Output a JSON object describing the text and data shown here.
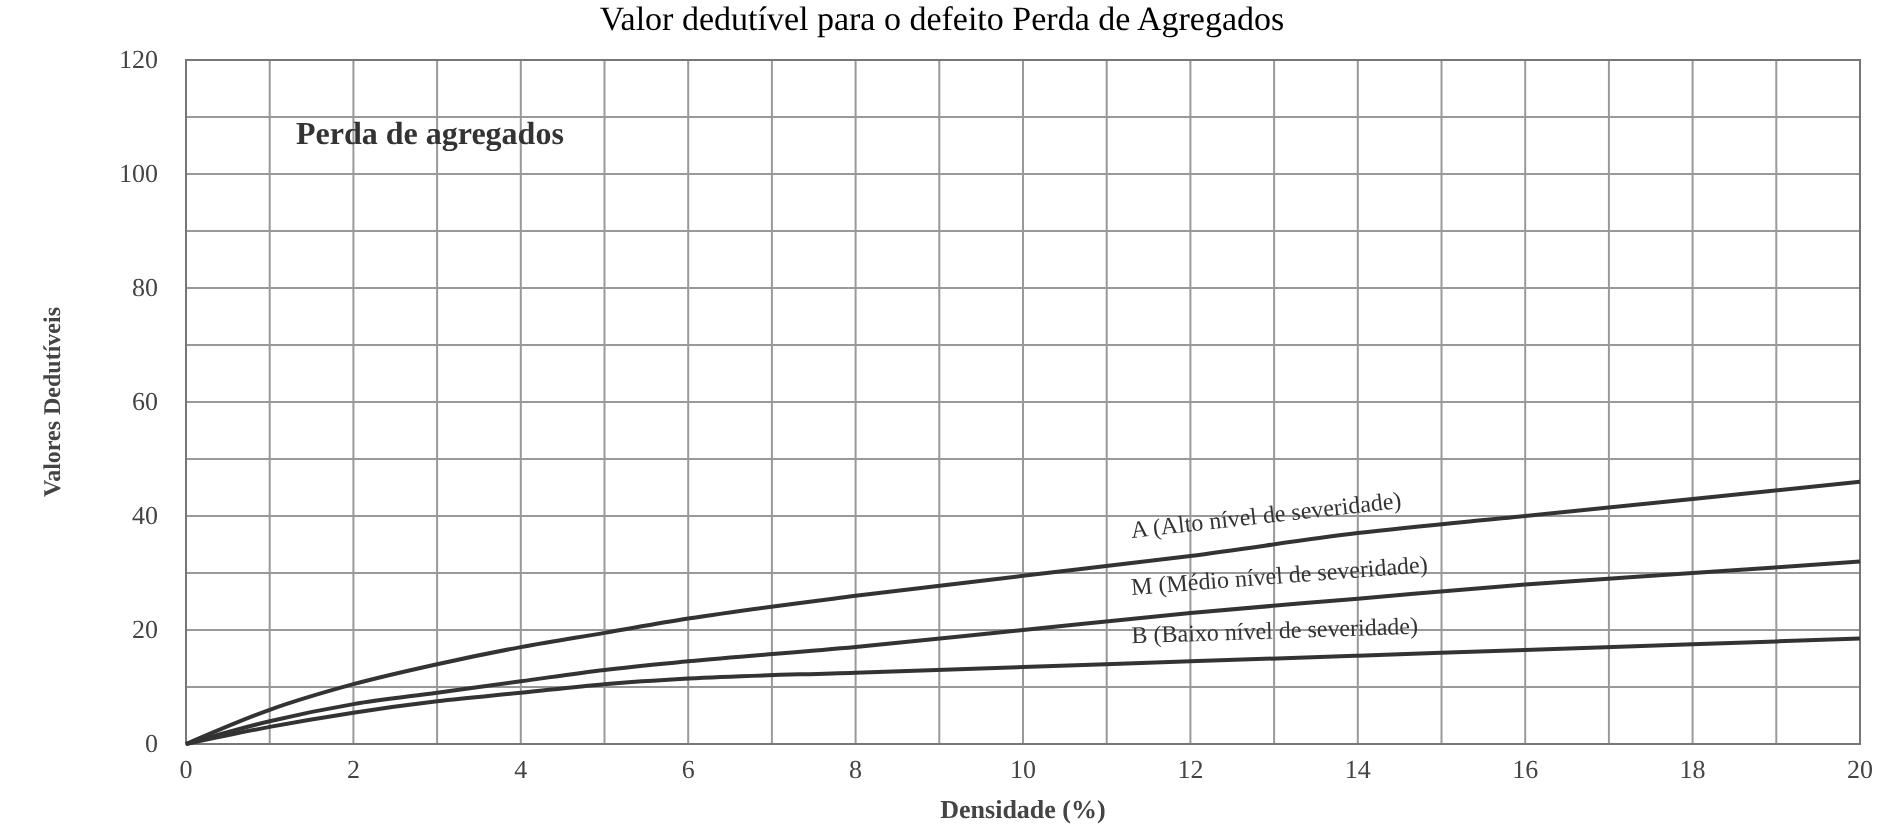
{
  "chart_data": {
    "type": "line",
    "title": "Valor dedutível para o defeito Perda de Agregados",
    "subtitle": "Perda de agregados",
    "xlabel": "Densidade (%)",
    "ylabel": "Valores Dedutíveis",
    "x": [
      0,
      1,
      2,
      3,
      4,
      5,
      6,
      8,
      10,
      12,
      14,
      16,
      18,
      20
    ],
    "series": [
      {
        "name": "A (Alto nível de severidade)",
        "color": "#333333",
        "values": [
          0,
          6,
          10.5,
          14,
          17,
          19.5,
          22,
          26,
          29.5,
          33,
          37,
          40,
          43,
          46
        ]
      },
      {
        "name": "M (Médio nível de severidade)",
        "color": "#333333",
        "values": [
          0,
          4,
          7,
          9,
          11,
          13,
          14.5,
          17,
          20,
          23,
          25.5,
          28,
          30,
          32
        ]
      },
      {
        "name": "B (Baixo nível de severidade)",
        "color": "#333333",
        "values": [
          0,
          3,
          5.5,
          7.5,
          9,
          10.5,
          11.5,
          12.5,
          13.5,
          14.5,
          15.5,
          16.5,
          17.5,
          18.5
        ]
      }
    ],
    "xlim": [
      0,
      20
    ],
    "xticks": [
      0,
      {
        "value": 1,
        "label": null
      },
      2,
      {
        "value": 3,
        "label": null
      },
      4,
      {
        "value": 5,
        "label": null
      },
      6,
      {
        "value": 7,
        "label": null
      },
      8,
      {
        "value": 9,
        "label": null
      },
      10,
      {
        "value": 11,
        "label": null
      },
      12,
      {
        "value": 13,
        "label": null
      },
      14,
      {
        "value": 15,
        "label": null
      },
      16,
      {
        "value": 17,
        "label": null
      },
      18,
      {
        "value": 19,
        "label": null
      },
      20
    ],
    "ylim": [
      0,
      120
    ],
    "yticks": [
      0,
      {
        "value": 10,
        "label": null
      },
      20,
      {
        "value": 30,
        "label": null
      },
      40,
      {
        "value": 50,
        "label": null
      },
      60,
      {
        "value": 70,
        "label": null
      },
      80,
      {
        "value": 90,
        "label": null
      },
      100,
      {
        "value": 110,
        "label": null
      },
      120
    ],
    "grid": true,
    "marker": "none",
    "line_style": "solid"
  }
}
